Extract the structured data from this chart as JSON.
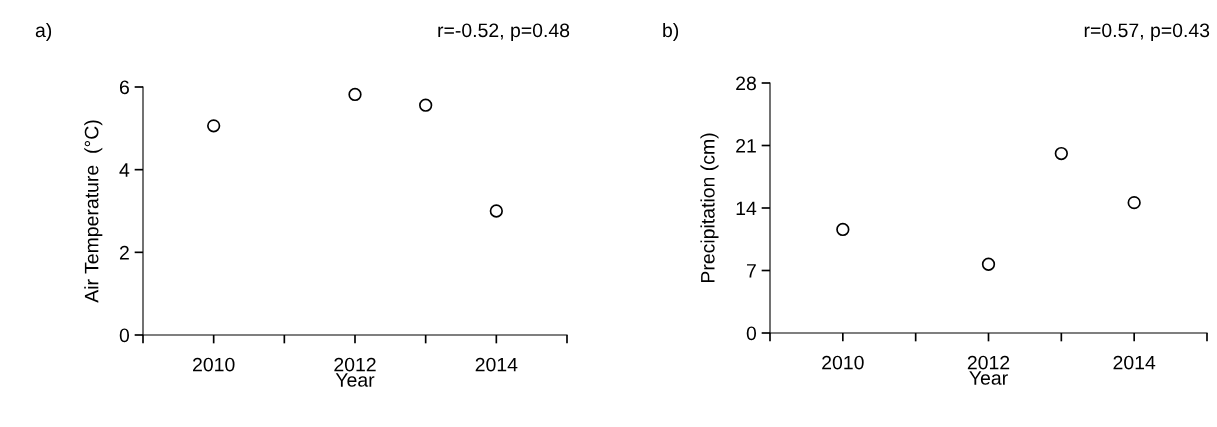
{
  "chart_data": [
    {
      "type": "scatter",
      "xlabel": "Year",
      "ylabel": "Air Temperature  (°C)",
      "annotations": [
        "a)",
        "r=-0.52, p=0.48"
      ],
      "x": [
        2010,
        2012,
        2013,
        2014
      ],
      "values": [
        5.06,
        5.82,
        5.56,
        3.0
      ],
      "color": "#000000",
      "marker": "circle",
      "xlim": [
        2009,
        2015
      ],
      "xticks": [
        {
          "value": 2009,
          "label": null
        },
        2010,
        {
          "value": 2011,
          "label": null
        },
        2012,
        {
          "value": 2013,
          "label": null
        },
        2014,
        {
          "value": 2015,
          "label": null
        }
      ],
      "ylim": [
        0,
        6
      ],
      "yticks": [
        0,
        2,
        4,
        6
      ],
      "grid": false,
      "legend": false
    },
    {
      "type": "scatter",
      "xlabel": "Year",
      "ylabel": "Precipitation (cm)",
      "annotations": [
        "b)",
        "r=0.57, p=0.43"
      ],
      "x": [
        2010,
        2012,
        2013,
        2014
      ],
      "values": [
        11.6,
        7.7,
        20.1,
        14.6
      ],
      "color": "#000000",
      "marker": "circle",
      "xlim": [
        2009,
        2015
      ],
      "xticks": [
        {
          "value": 2009,
          "label": null
        },
        2010,
        {
          "value": 2011,
          "label": null
        },
        2012,
        {
          "value": 2013,
          "label": null
        },
        2014,
        {
          "value": 2015,
          "label": null
        }
      ],
      "ylim": [
        0,
        28
      ],
      "yticks": [
        0,
        7,
        14,
        21,
        28
      ],
      "grid": false,
      "legend": false
    }
  ]
}
